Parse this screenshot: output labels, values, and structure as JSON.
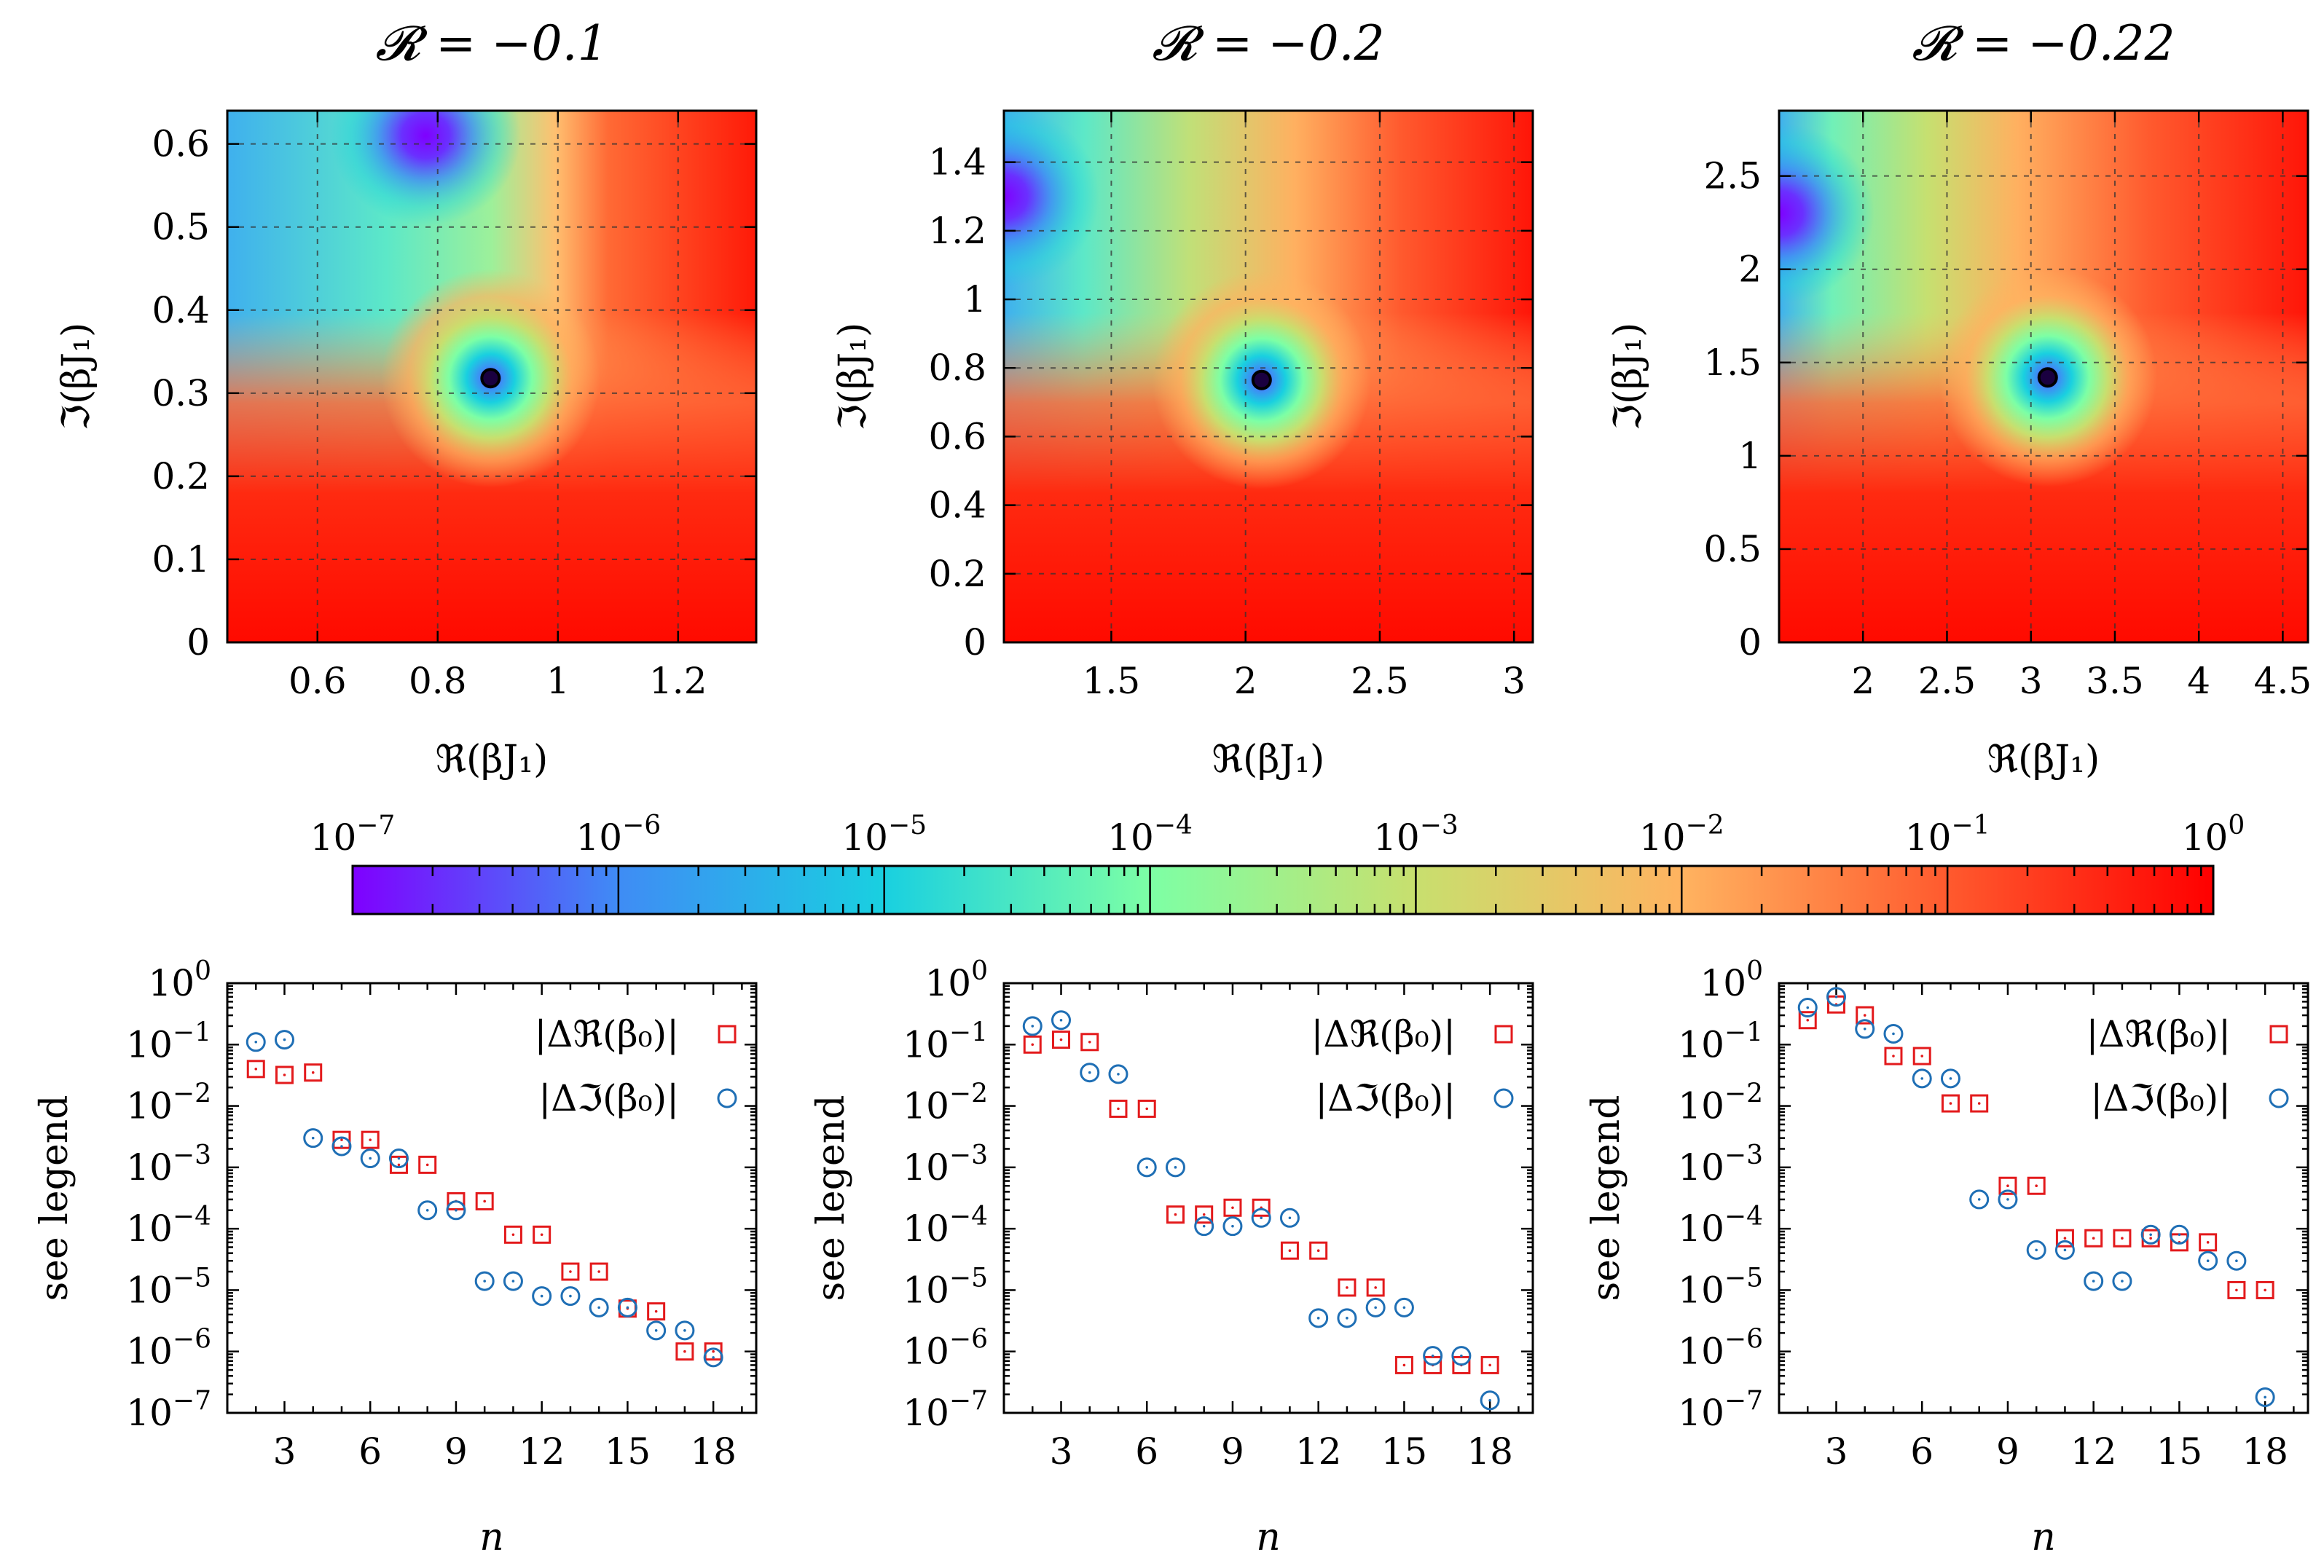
{
  "colors": {
    "square_marker": "#e31a1c",
    "circle_marker": "#1f6fb5",
    "rainbow": [
      "#7f00ff",
      "#3f8cf5",
      "#19d0e0",
      "#7dffa5",
      "#c8df6e",
      "#ffb360",
      "#ff5a2e",
      "#ff0000"
    ]
  },
  "chart_data": [
    {
      "type": "heatmap",
      "title": "𝓡 = −0.1",
      "xlabel": "ℜ(βJ₁)",
      "ylabel": "ℑ(βJ₁)",
      "xlim": [
        0.45,
        1.33
      ],
      "ylim": [
        0,
        0.64
      ],
      "xticks": [
        0.6,
        0.8,
        1,
        1.2
      ],
      "xtick_labels": [
        "0.6",
        "0.8",
        "1",
        "1.2"
      ],
      "yticks": [
        0,
        0.1,
        0.2,
        0.3,
        0.4,
        0.5,
        0.6
      ],
      "ytick_labels": [
        "0",
        "0.1",
        "0.2",
        "0.3",
        "0.4",
        "0.5",
        "0.6"
      ],
      "grid": true,
      "zero": {
        "x": 0.888,
        "y": 0.318
      },
      "low_region": {
        "x": 0.78,
        "y": 0.61
      }
    },
    {
      "type": "heatmap",
      "title": "𝓡 = −0.2",
      "xlabel": "ℜ(βJ₁)",
      "ylabel": "ℑ(βJ₁)",
      "xlim": [
        1.1,
        3.07
      ],
      "ylim": [
        0,
        1.55
      ],
      "xticks": [
        1.5,
        2,
        2.5,
        3
      ],
      "xtick_labels": [
        "1.5",
        "2",
        "2.5",
        "3"
      ],
      "yticks": [
        0,
        0.2,
        0.4,
        0.6,
        0.8,
        1,
        1.2,
        1.4
      ],
      "ytick_labels": [
        "0",
        "0.2",
        "0.4",
        "0.6",
        "0.8",
        "1",
        "1.2",
        "1.4"
      ],
      "grid": true,
      "zero": {
        "x": 2.06,
        "y": 0.765
      },
      "low_region": {
        "x": 1.1,
        "y": 1.3
      }
    },
    {
      "type": "heatmap",
      "title": "𝓡 = −0.22",
      "xlabel": "ℜ(βJ₁)",
      "ylabel": "ℑ(βJ₁)",
      "xlim": [
        1.5,
        4.65
      ],
      "ylim": [
        0,
        2.85
      ],
      "xticks": [
        2,
        2.5,
        3,
        3.5,
        4,
        4.5
      ],
      "xtick_labels": [
        "2",
        "2.5",
        "3",
        "3.5",
        "4",
        "4.5"
      ],
      "yticks": [
        0,
        0.5,
        1,
        1.5,
        2,
        2.5
      ],
      "ytick_labels": [
        "0",
        "0.5",
        "1",
        "1.5",
        "2",
        "2.5"
      ],
      "grid": true,
      "zero": {
        "x": 3.1,
        "y": 1.42
      },
      "low_region": {
        "x": 1.5,
        "y": 2.3
      }
    },
    {
      "type": "colorbar",
      "scale": "log",
      "range": [
        1e-07,
        1
      ],
      "tick_labels": [
        "10",
        "10",
        "10",
        "10",
        "10",
        "10",
        "10",
        "10"
      ],
      "tick_exponents": [
        "−7",
        "−6",
        "−5",
        "−4",
        "−3",
        "−2",
        "−1",
        "0"
      ]
    },
    {
      "type": "scatter",
      "xlabel": "n",
      "ylabel": "see legend",
      "xlim": [
        1,
        19.5
      ],
      "ylim_exp": [
        -7,
        0
      ],
      "yscale": "log",
      "xticks": [
        3,
        6,
        9,
        12,
        15,
        18
      ],
      "xtick_labels": [
        "3",
        "6",
        "9",
        "12",
        "15",
        "18"
      ],
      "ytick_exponents": [
        "−7",
        "−6",
        "−5",
        "−4",
        "−3",
        "−2",
        "−1",
        "0"
      ],
      "legend_position": "top-right",
      "series": [
        {
          "name": "|Δℜ(β₀)|",
          "marker": "square",
          "x": [
            2,
            3,
            4,
            5,
            6,
            7,
            8,
            9,
            10,
            11,
            12,
            13,
            14,
            15,
            16,
            17,
            18
          ],
          "y": [
            0.04,
            0.032,
            0.035,
            0.0028,
            0.0028,
            0.0011,
            0.0011,
            0.00028,
            0.00028,
            8e-05,
            8e-05,
            2e-05,
            2e-05,
            5e-06,
            4.5e-06,
            1e-06,
            1e-06
          ]
        },
        {
          "name": "|Δℑ(β₀)|",
          "marker": "circle",
          "x": [
            2,
            3,
            4,
            5,
            6,
            7,
            8,
            9,
            10,
            11,
            12,
            13,
            14,
            15,
            16,
            17,
            18
          ],
          "y": [
            0.11,
            0.12,
            0.003,
            0.0022,
            0.0014,
            0.0014,
            0.0002,
            0.0002,
            1.4e-05,
            1.4e-05,
            8e-06,
            8e-06,
            5.2e-06,
            5.2e-06,
            2.2e-06,
            2.2e-06,
            8e-07
          ]
        }
      ]
    },
    {
      "type": "scatter",
      "xlabel": "n",
      "ylabel": "see legend",
      "xlim": [
        1,
        19.5
      ],
      "ylim_exp": [
        -7,
        0
      ],
      "yscale": "log",
      "xticks": [
        3,
        6,
        9,
        12,
        15,
        18
      ],
      "xtick_labels": [
        "3",
        "6",
        "9",
        "12",
        "15",
        "18"
      ],
      "ytick_exponents": [
        "−7",
        "−6",
        "−5",
        "−4",
        "−3",
        "−2",
        "−1",
        "0"
      ],
      "legend_position": "top-right",
      "series": [
        {
          "name": "|Δℜ(β₀)|",
          "marker": "square",
          "x": [
            2,
            3,
            4,
            5,
            6,
            7,
            8,
            9,
            10,
            11,
            12,
            13,
            14,
            15,
            16,
            17,
            18
          ],
          "y": [
            0.1,
            0.12,
            0.11,
            0.009,
            0.009,
            0.00017,
            0.00017,
            0.00022,
            0.00022,
            4.4e-05,
            4.4e-05,
            1.1e-05,
            1.1e-05,
            6e-07,
            6e-07,
            6e-07,
            6e-07
          ]
        },
        {
          "name": "|Δℑ(β₀)|",
          "marker": "circle",
          "x": [
            2,
            3,
            4,
            5,
            6,
            7,
            8,
            9,
            10,
            11,
            12,
            13,
            14,
            15,
            16,
            17,
            18
          ],
          "y": [
            0.2,
            0.25,
            0.035,
            0.033,
            0.001,
            0.001,
            0.00011,
            0.00011,
            0.00015,
            0.00015,
            3.5e-06,
            3.5e-06,
            5.2e-06,
            5.2e-06,
            8.5e-07,
            8.5e-07,
            1.6e-07
          ]
        }
      ]
    },
    {
      "type": "scatter",
      "xlabel": "n",
      "ylabel": "see legend",
      "xlim": [
        1,
        19.5
      ],
      "ylim_exp": [
        -7,
        0
      ],
      "yscale": "log",
      "xticks": [
        3,
        6,
        9,
        12,
        15,
        18
      ],
      "xtick_labels": [
        "3",
        "6",
        "9",
        "12",
        "15",
        "18"
      ],
      "ytick_exponents": [
        "−7",
        "−6",
        "−5",
        "−4",
        "−3",
        "−2",
        "−1",
        "0"
      ],
      "legend_position": "top-right",
      "series": [
        {
          "name": "|Δℜ(β₀)|",
          "marker": "square",
          "x": [
            2,
            3,
            4,
            5,
            6,
            7,
            8,
            9,
            10,
            11,
            12,
            13,
            14,
            15,
            16,
            17,
            18
          ],
          "y": [
            0.25,
            0.45,
            0.3,
            0.065,
            0.065,
            0.011,
            0.011,
            0.0005,
            0.0005,
            7e-05,
            7e-05,
            7e-05,
            7e-05,
            6e-05,
            6e-05,
            1e-05,
            1e-05
          ]
        },
        {
          "name": "|Δℑ(β₀)|",
          "marker": "circle",
          "x": [
            2,
            3,
            4,
            5,
            6,
            7,
            8,
            9,
            10,
            11,
            12,
            13,
            14,
            15,
            16,
            17,
            18
          ],
          "y": [
            0.4,
            0.6,
            0.18,
            0.15,
            0.028,
            0.028,
            0.0003,
            0.0003,
            4.5e-05,
            4.5e-05,
            1.4e-05,
            1.4e-05,
            8e-05,
            8e-05,
            3e-05,
            3e-05,
            1.8e-07
          ]
        }
      ]
    }
  ]
}
